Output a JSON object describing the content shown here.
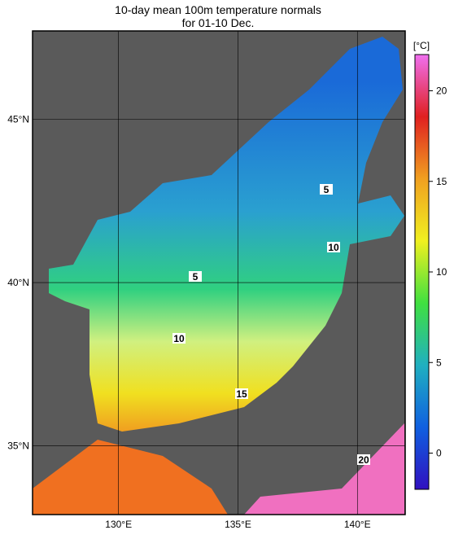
{
  "title": [
    "10-day mean 100m temperature normals",
    "for 01-10 Dec."
  ],
  "map": {
    "lonlim": [
      126.4,
      142
    ],
    "latlim": [
      32.9,
      47.7
    ],
    "xticks": [
      {
        "value": 130,
        "label": "130°E"
      },
      {
        "value": 135,
        "label": "135°E"
      },
      {
        "value": 140,
        "label": "140°E"
      }
    ],
    "yticks": [
      {
        "value": 35,
        "label": "35°N"
      },
      {
        "value": 40,
        "label": "40°N"
      },
      {
        "value": 45,
        "label": "45°N"
      }
    ],
    "contour_labels": [
      5,
      10,
      5,
      10,
      15,
      20
    ]
  },
  "colorbar": {
    "unit": "[°C]",
    "lim": [
      -2,
      22
    ],
    "ticks": [
      0,
      5,
      10,
      15,
      20
    ],
    "colors": [
      "#3010c0",
      "#1060e0",
      "#20b0c0",
      "#40e040",
      "#f0f020",
      "#f0a020",
      "#e02020",
      "#f070f0"
    ]
  }
}
